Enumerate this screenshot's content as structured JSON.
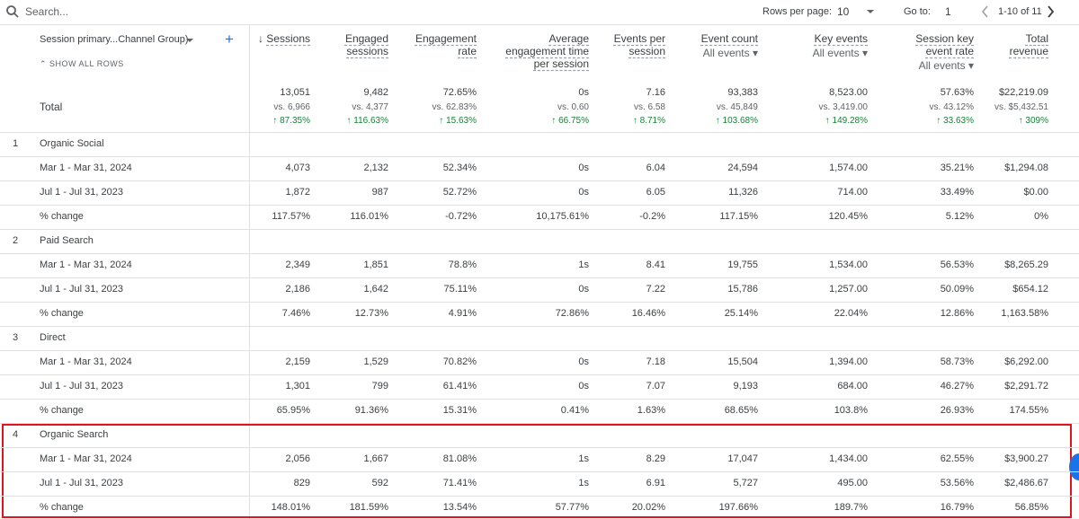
{
  "toolbar": {
    "search": "Search...",
    "rows_per_page_label": "Rows per page:",
    "rows_per_page": "10",
    "goto_label": "Go to:",
    "goto": "1",
    "range": "1-10 of 11"
  },
  "dimension": {
    "label": "Session primary...Channel Group)",
    "show_all": "SHOW ALL ROWS"
  },
  "columns": [
    {
      "name": "Sessions"
    },
    {
      "name": "Engaged sessions"
    },
    {
      "name": "Engagement rate"
    },
    {
      "name": "Average engagement time per session"
    },
    {
      "name": "Events per session"
    },
    {
      "name": "Event count",
      "filter": "All events"
    },
    {
      "name": "Key events",
      "filter": "All events"
    },
    {
      "name": "Session key event rate",
      "filter": "All events"
    },
    {
      "name": "Total revenue"
    }
  ],
  "total": {
    "label": "Total",
    "cells": [
      {
        "value": "13,051",
        "compare": "vs. 6,966",
        "change": "↑ 87.35%"
      },
      {
        "value": "9,482",
        "compare": "vs. 4,377",
        "change": "↑ 116.63%"
      },
      {
        "value": "72.65%",
        "compare": "vs. 62.83%",
        "change": "↑ 15.63%"
      },
      {
        "value": "0s",
        "compare": "vs. 0.60",
        "change": "↑ 66.75%"
      },
      {
        "value": "7.16",
        "compare": "vs. 6.58",
        "change": "↑ 8.71%"
      },
      {
        "value": "93,383",
        "compare": "vs. 45,849",
        "change": "↑ 103.68%"
      },
      {
        "value": "8,523.00",
        "compare": "vs. 3,419.00",
        "change": "↑ 149.28%"
      },
      {
        "value": "57.63%",
        "compare": "vs. 43.12%",
        "change": "↑ 33.63%"
      },
      {
        "value": "$22,219.09",
        "compare": "vs. $5,432.51",
        "change": "↑ 309%"
      }
    ]
  },
  "groups": [
    {
      "index": "1",
      "name": "Organic Social",
      "rows": [
        {
          "label": "Mar 1 - Mar 31, 2024",
          "cells": [
            "4,073",
            "2,132",
            "52.34%",
            "0s",
            "6.04",
            "24,594",
            "1,574.00",
            "35.21%",
            "$1,294.08"
          ]
        },
        {
          "label": "Jul 1 - Jul 31, 2023",
          "cells": [
            "1,872",
            "987",
            "52.72%",
            "0s",
            "6.05",
            "11,326",
            "714.00",
            "33.49%",
            "$0.00"
          ]
        },
        {
          "label": "% change",
          "cells": [
            "117.57%",
            "116.01%",
            "-0.72%",
            "10,175.61%",
            "-0.2%",
            "117.15%",
            "120.45%",
            "5.12%",
            "0%"
          ]
        }
      ]
    },
    {
      "index": "2",
      "name": "Paid Search",
      "rows": [
        {
          "label": "Mar 1 - Mar 31, 2024",
          "cells": [
            "2,349",
            "1,851",
            "78.8%",
            "1s",
            "8.41",
            "19,755",
            "1,534.00",
            "56.53%",
            "$8,265.29"
          ]
        },
        {
          "label": "Jul 1 - Jul 31, 2023",
          "cells": [
            "2,186",
            "1,642",
            "75.11%",
            "0s",
            "7.22",
            "15,786",
            "1,257.00",
            "50.09%",
            "$654.12"
          ]
        },
        {
          "label": "% change",
          "cells": [
            "7.46%",
            "12.73%",
            "4.91%",
            "72.86%",
            "16.46%",
            "25.14%",
            "22.04%",
            "12.86%",
            "1,163.58%"
          ]
        }
      ]
    },
    {
      "index": "3",
      "name": "Direct",
      "rows": [
        {
          "label": "Mar 1 - Mar 31, 2024",
          "cells": [
            "2,159",
            "1,529",
            "70.82%",
            "0s",
            "7.18",
            "15,504",
            "1,394.00",
            "58.73%",
            "$6,292.00"
          ]
        },
        {
          "label": "Jul 1 - Jul 31, 2023",
          "cells": [
            "1,301",
            "799",
            "61.41%",
            "0s",
            "7.07",
            "9,193",
            "684.00",
            "46.27%",
            "$2,291.72"
          ]
        },
        {
          "label": "% change",
          "cells": [
            "65.95%",
            "91.36%",
            "15.31%",
            "0.41%",
            "1.63%",
            "68.65%",
            "103.8%",
            "26.93%",
            "174.55%"
          ]
        }
      ]
    },
    {
      "index": "4",
      "name": "Organic Search",
      "rows": [
        {
          "label": "Mar 1 - Mar 31, 2024",
          "cells": [
            "2,056",
            "1,667",
            "81.08%",
            "1s",
            "8.29",
            "17,047",
            "1,434.00",
            "62.55%",
            "$3,900.27"
          ]
        },
        {
          "label": "Jul 1 - Jul 31, 2023",
          "cells": [
            "829",
            "592",
            "71.41%",
            "1s",
            "6.91",
            "5,727",
            "495.00",
            "53.56%",
            "$2,486.67"
          ]
        },
        {
          "label": "% change",
          "cells": [
            "148.01%",
            "181.59%",
            "13.54%",
            "57.77%",
            "20.02%",
            "197.66%",
            "189.7%",
            "16.79%",
            "56.85%"
          ]
        }
      ]
    }
  ]
}
